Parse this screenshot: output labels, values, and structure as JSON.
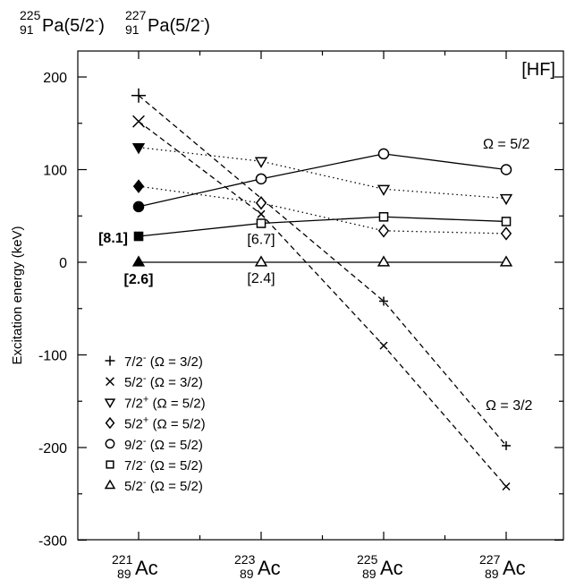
{
  "chart_data": {
    "type": "line",
    "ylabel": "Excitation energy (keV)",
    "ylim": [
      -300,
      225
    ],
    "yticks": [
      -300,
      -200,
      -100,
      0,
      100,
      200
    ],
    "ytick_labels": [
      "-300",
      "-200",
      "-100",
      "0",
      "100",
      "200"
    ],
    "categories": [
      {
        "mass": "221",
        "z": "89",
        "el": "Ac"
      },
      {
        "mass": "223",
        "z": "89",
        "el": "Ac"
      },
      {
        "mass": "225",
        "z": "89",
        "el": "Ac"
      },
      {
        "mass": "227",
        "z": "89",
        "el": "Ac"
      }
    ],
    "top_labels": [
      {
        "mass": "225",
        "z": "91",
        "el": "Pa(5/2",
        "sup": "-",
        "close": ")"
      },
      {
        "mass": "227",
        "z": "91",
        "el": "Pa(5/2",
        "sup": "-",
        "close": ")"
      }
    ],
    "method_label": "[HF]",
    "omega_labels": [
      "Ω = 5/2",
      "Ω = 3/2"
    ],
    "series": [
      {
        "jp": "7/2",
        "parity": "-",
        "omega": " (Ω = 3/2)",
        "marker": "plus",
        "line": "dashed",
        "filled_first": false,
        "values": [
          180,
          null,
          -42,
          -198
        ]
      },
      {
        "jp": "5/2",
        "parity": "-",
        "omega": " (Ω = 3/2)",
        "marker": "cross",
        "line": "dashed",
        "filled_first": false,
        "values": [
          152,
          52,
          -90,
          -242
        ]
      },
      {
        "jp": "7/2",
        "parity": "+",
        "omega": " (Ω = 5/2)",
        "marker": "tridown",
        "line": "dotted",
        "filled_first": true,
        "values": [
          124,
          109,
          79,
          69
        ]
      },
      {
        "jp": "5/2",
        "parity": "+",
        "omega": " (Ω = 5/2)",
        "marker": "diamond",
        "line": "dotted",
        "filled_first": true,
        "values": [
          82,
          64,
          34,
          31
        ]
      },
      {
        "jp": "9/2",
        "parity": "-",
        "omega": " (Ω = 5/2)",
        "marker": "circle",
        "line": "solid",
        "filled_first": true,
        "values": [
          60,
          90,
          117,
          100
        ]
      },
      {
        "jp": "7/2",
        "parity": "-",
        "omega": " (Ω = 5/2)",
        "marker": "square",
        "line": "solid",
        "filled_first": true,
        "values": [
          28,
          42,
          49,
          44
        ]
      },
      {
        "jp": "5/2",
        "parity": "-",
        "omega": " (Ω = 5/2)",
        "marker": "triup",
        "line": "solid",
        "filled_first": true,
        "values": [
          0,
          0,
          0,
          0
        ]
      }
    ],
    "annotations": [
      {
        "text": "[8.1]",
        "x_index": 0,
        "y": 28,
        "bold": true
      },
      {
        "text": "[2.6]",
        "x_index": 0,
        "y": 0,
        "bold": true
      },
      {
        "text": "[6.7]",
        "x_index": 1,
        "y": 42,
        "bold": false
      },
      {
        "text": "[2.4]",
        "x_index": 1,
        "y": 0,
        "bold": false
      }
    ],
    "grid": false,
    "legend_position": "bottom-left"
  }
}
